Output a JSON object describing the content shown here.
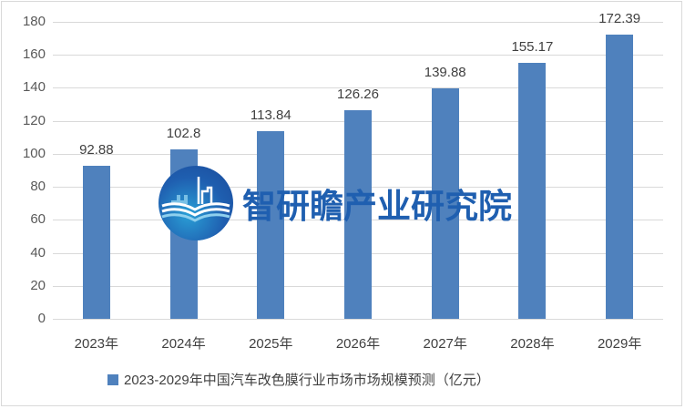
{
  "chart_data": {
    "type": "bar",
    "title": "",
    "categories": [
      "2023年",
      "2024年",
      "2025年",
      "2026年",
      "2027年",
      "2028年",
      "2029年"
    ],
    "series": [
      {
        "name": "2023-2029年中国汽车改色膜行业市场市场规模预测（亿元）",
        "values": [
          92.88,
          102.8,
          113.84,
          126.26,
          139.88,
          155.17,
          172.39
        ],
        "color": "#4f81bd"
      }
    ],
    "value_labels": [
      "92.88",
      "102.8",
      "113.84",
      "126.26",
      "139.88",
      "155.17",
      "172.39"
    ],
    "xlabel": "",
    "ylabel": "",
    "ylim": [
      0,
      180
    ],
    "yticks": [
      "0",
      "20",
      "40",
      "60",
      "80",
      "100",
      "120",
      "140",
      "160",
      "180"
    ],
    "grid": true,
    "legend_position": "bottom"
  },
  "legend": {
    "label": "2023-2029年中国汽车改色膜行业市场市场规模预测（亿元）"
  },
  "watermark": {
    "text": "智研瞻产业研究院"
  }
}
